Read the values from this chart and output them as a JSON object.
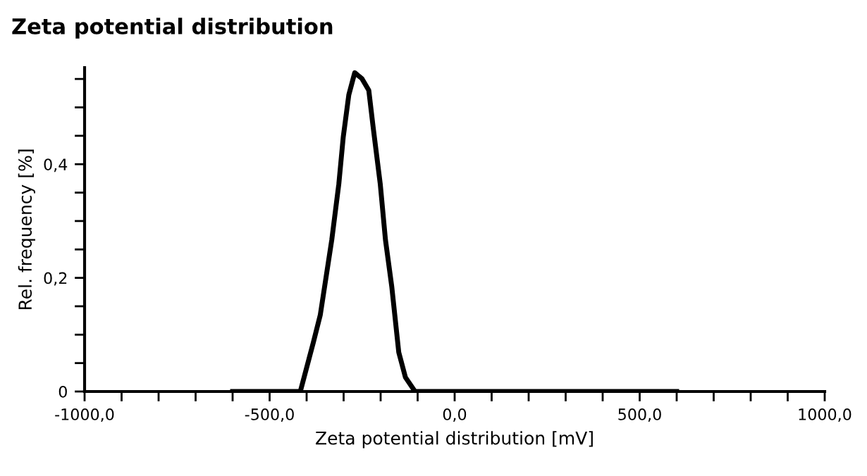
{
  "chart_data": {
    "type": "line",
    "title": "Zeta potential distribution",
    "xlabel": "Zeta potential distribution [mV]",
    "ylabel": "Rel. frequency [%]",
    "series": [
      {
        "color": "#000000",
        "x": [
          -600,
          -417,
          -382,
          -363,
          -332,
          -313,
          -301,
          -286,
          -270,
          -251,
          -232,
          -220,
          -201,
          -187,
          -170,
          -151,
          -133,
          -107,
          600
        ],
        "values": [
          0,
          0,
          0.086,
          0.135,
          0.267,
          0.365,
          0.448,
          0.522,
          0.561,
          0.551,
          0.53,
          0.464,
          0.365,
          0.267,
          0.185,
          0.069,
          0.025,
          0,
          0
        ]
      }
    ],
    "xlim": [
      -1000,
      1000
    ],
    "xticks": [
      {
        "value": -1000,
        "label": "-1000,0"
      },
      {
        "value": -900,
        "label": null
      },
      {
        "value": -800,
        "label": null
      },
      {
        "value": -700,
        "label": null
      },
      {
        "value": -600,
        "label": null
      },
      {
        "value": -500,
        "label": "-500,0"
      },
      {
        "value": -400,
        "label": null
      },
      {
        "value": -300,
        "label": null
      },
      {
        "value": -200,
        "label": null
      },
      {
        "value": -100,
        "label": null
      },
      {
        "value": 0,
        "label": "0,0"
      },
      {
        "value": 100,
        "label": null
      },
      {
        "value": 200,
        "label": null
      },
      {
        "value": 300,
        "label": null
      },
      {
        "value": 400,
        "label": null
      },
      {
        "value": 500,
        "label": "500,0"
      },
      {
        "value": 600,
        "label": null
      },
      {
        "value": 700,
        "label": null
      },
      {
        "value": 800,
        "label": null
      },
      {
        "value": 900,
        "label": null
      },
      {
        "value": 1000,
        "label": "1000,0"
      }
    ],
    "ylim": [
      0,
      0.57
    ],
    "yticks": [
      0,
      {
        "value": 0.05,
        "label": null
      },
      {
        "value": 0.1,
        "label": null
      },
      {
        "value": 0.15,
        "label": null
      },
      {
        "value": 0.2,
        "label": "0,2"
      },
      {
        "value": 0.25,
        "label": null
      },
      {
        "value": 0.3,
        "label": null
      },
      {
        "value": 0.35,
        "label": null
      },
      {
        "value": 0.4,
        "label": "0,4"
      },
      {
        "value": 0.45,
        "label": null
      },
      {
        "value": 0.5,
        "label": null
      },
      {
        "value": 0.55,
        "label": null
      }
    ],
    "grid": false,
    "marker": "none",
    "line_style": "solid"
  }
}
